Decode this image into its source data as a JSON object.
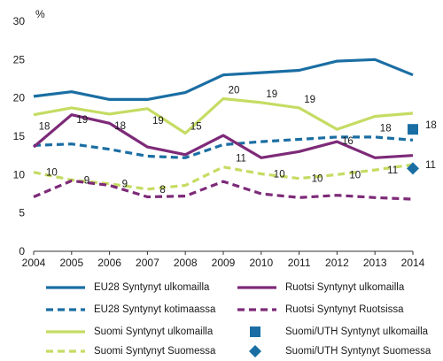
{
  "chart_data": {
    "type": "line",
    "unit_label": "%",
    "x": [
      2004,
      2005,
      2006,
      2007,
      2008,
      2009,
      2010,
      2011,
      2012,
      2013,
      2014
    ],
    "ylim": [
      0,
      30
    ],
    "yticks": [
      0,
      5,
      10,
      15,
      20,
      25,
      30
    ],
    "xtick_labels": [
      "2004",
      "2005",
      "2006",
      "2007",
      "2008",
      "2009",
      "2010",
      "2011",
      "2012",
      "2013",
      "2014"
    ],
    "ytick_labels": [
      "0",
      "5",
      "10",
      "15",
      "20",
      "25",
      "30"
    ],
    "grid": false,
    "legend_position": "bottom",
    "series": [
      {
        "name": "EU28 Syntynyt ulkomailla",
        "color": "#1a6ea3",
        "style": "solid",
        "values": [
          20.2,
          20.8,
          19.8,
          19.8,
          20.7,
          23.0,
          23.3,
          23.6,
          24.8,
          25.0,
          23.0
        ]
      },
      {
        "name": "EU28 Syntynyt kotimaassa",
        "color": "#1a6ea3",
        "style": "dashed",
        "values": [
          13.8,
          14.0,
          13.3,
          12.4,
          12.2,
          13.9,
          14.3,
          14.6,
          14.9,
          14.9,
          14.5
        ]
      },
      {
        "name": "Suomi Syntynyt ulkomailla",
        "color": "#c5dc63",
        "style": "solid",
        "values": [
          17.8,
          18.7,
          17.9,
          18.6,
          15.4,
          19.9,
          19.4,
          18.7,
          15.9,
          17.6,
          18.0
        ],
        "labels": [
          "18",
          "19",
          "18",
          "19",
          "15",
          "20",
          "19",
          "19",
          "16",
          "18",
          "18"
        ]
      },
      {
        "name": "Suomi Syntynyt Suomessa",
        "color": "#c5dc63",
        "style": "dashed",
        "values": [
          10.3,
          9.3,
          8.8,
          8.1,
          8.6,
          11.0,
          10.1,
          9.5,
          10.0,
          10.6,
          11.3
        ],
        "labels": [
          "10",
          "9",
          "9",
          "8",
          "",
          "11",
          "10",
          "10",
          "10",
          "11",
          "11"
        ]
      },
      {
        "name": "Ruotsi Syntynyt ulkomailla",
        "color": "#7d2a78",
        "style": "solid",
        "values": [
          13.6,
          17.8,
          16.7,
          13.6,
          12.6,
          15.1,
          12.2,
          13.0,
          14.3,
          12.2,
          12.5
        ]
      },
      {
        "name": "Ruotsi Syntynyt Ruotsissa",
        "color": "#7d2a78",
        "style": "dashed",
        "values": [
          7.1,
          9.2,
          8.6,
          7.1,
          7.2,
          9.1,
          7.5,
          7.0,
          7.3,
          7.0,
          6.8
        ]
      }
    ],
    "points": [
      {
        "name": "Suomi/UTH Syntynyt ulkomailla",
        "color": "#1a6ea3",
        "marker": "square",
        "x": 2014,
        "y": 15.9
      },
      {
        "name": "Suomi/UTH Syntynyt Suomessa",
        "color": "#1a6ea3",
        "marker": "diamond",
        "x": 2014,
        "y": 10.8
      }
    ]
  }
}
